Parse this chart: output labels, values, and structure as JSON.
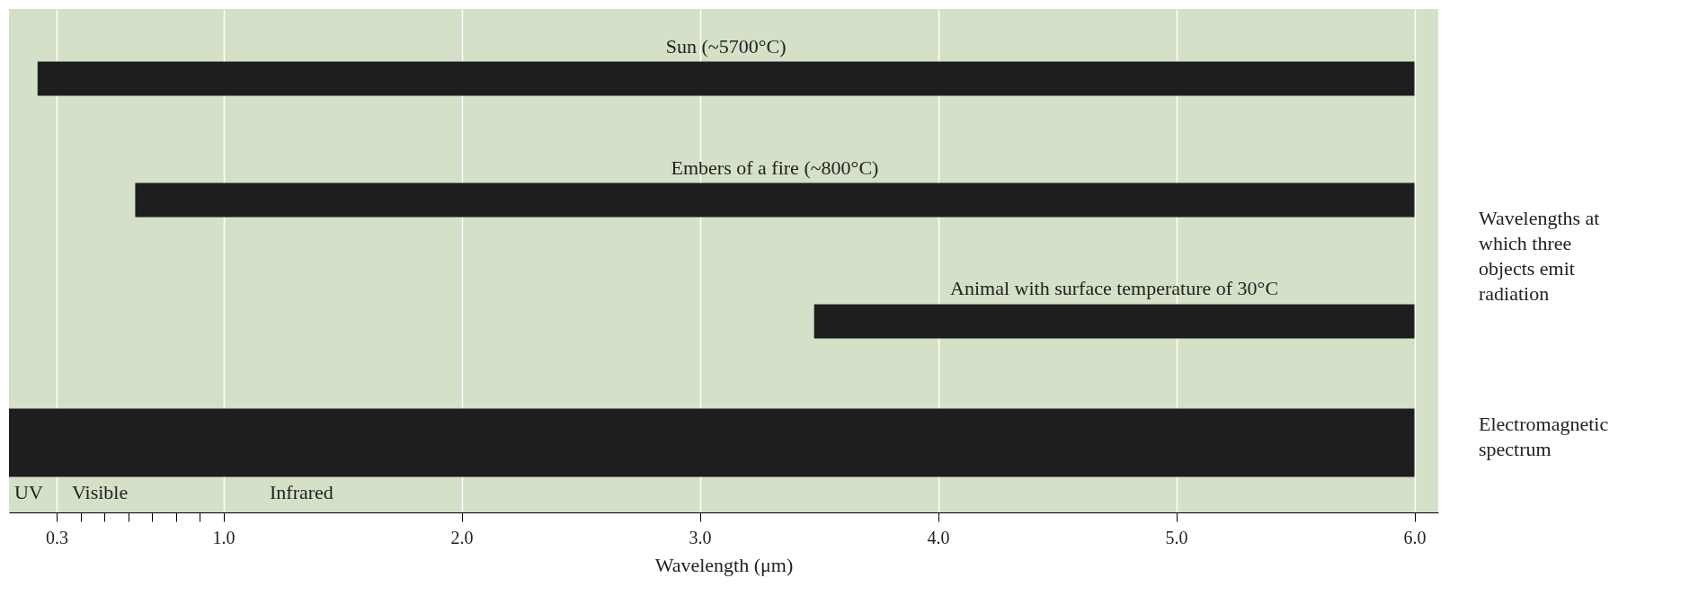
{
  "chart_data": {
    "type": "bar",
    "orientation": "horizontal",
    "xlabel": "Wavelength (μm)",
    "categories": [
      "Sun (~5700°C)",
      "Embers of a fire (~800°C)",
      "Animal with surface temperature of 30°C",
      null
    ],
    "base": [
      0.22,
      0.63,
      3.48,
      0.1
    ],
    "values": [
      5.78,
      5.37,
      2.52,
      5.9
    ],
    "color": "#1e1e1e",
    "xlim": [
      0.1,
      6.1
    ],
    "xticks": [
      0.3,
      {
        "value": 0.4,
        "label": null
      },
      {
        "value": 0.5,
        "label": null
      },
      {
        "value": 0.6,
        "label": null
      },
      {
        "value": 0.7,
        "label": null
      },
      {
        "value": 0.8,
        "label": null
      },
      {
        "value": 0.9,
        "label": null
      },
      {
        "value": 1,
        "label": "1.0"
      },
      {
        "value": 2,
        "label": "2.0"
      },
      {
        "value": 3,
        "label": "3.0"
      },
      {
        "value": 4,
        "label": "4.0"
      },
      {
        "value": 5,
        "label": "5.0"
      },
      {
        "value": 6,
        "label": "6.0"
      }
    ],
    "grid": "x",
    "annotations": [
      "Wavelengths at which three objects emit radiation",
      "Electromagnetic spectrum",
      "UV",
      "Visible",
      "Infrared"
    ]
  }
}
